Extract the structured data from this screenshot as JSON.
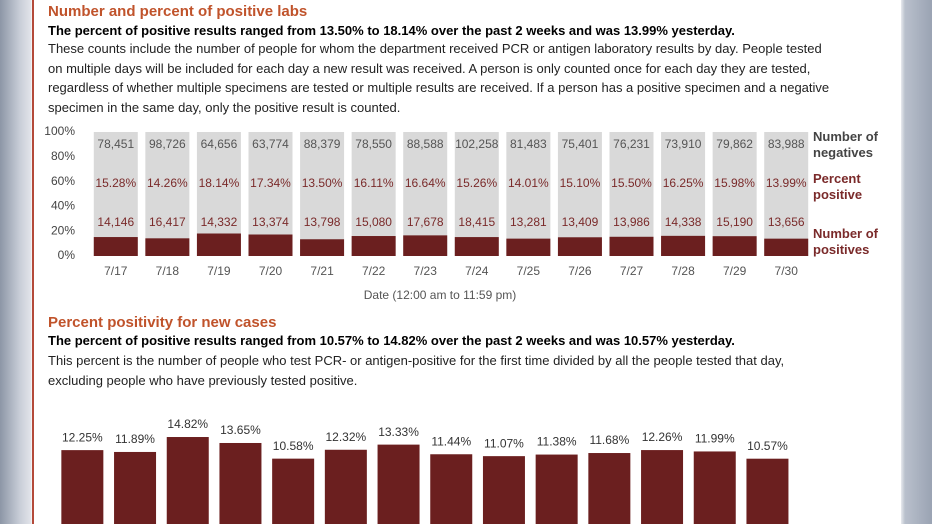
{
  "chart_data": [
    {
      "type": "bar",
      "title": "Number and percent of positive labs",
      "subtitle": "The percent of positive results ranged from 13.50% to 18.14% over the past 2 weeks and was 13.99% yesterday.",
      "description": "These counts include the number of people for whom the department received PCR or antigen laboratory results by day. People tested on multiple days will be included for each day a new result was received. A person is only counted once for each day they are tested, regardless of whether multiple specimens are tested or multiple results are received. If a person has a positive specimen and a negative specimen in the same day, only the positive result is counted.",
      "xlabel": "Date (12:00 am to 11:59 pm)",
      "categories": [
        "7/17",
        "7/18",
        "7/19",
        "7/20",
        "7/21",
        "7/22",
        "7/23",
        "7/24",
        "7/25",
        "7/26",
        "7/27",
        "7/28",
        "7/29",
        "7/30"
      ],
      "series": [
        {
          "name": "Number of negatives",
          "color": "#d9d9d9",
          "values": [
            78451,
            98726,
            64656,
            63774,
            88379,
            78550,
            88588,
            102258,
            81483,
            75401,
            76231,
            73910,
            79862,
            83988
          ],
          "value_labels": [
            "78,451",
            "98,726",
            "64,656",
            "63,774",
            "88,379",
            "78,550",
            "88,588",
            "102,258",
            "81,483",
            "75,401",
            "76,231",
            "73,910",
            "79,862",
            "83,988"
          ]
        },
        {
          "name": "Percent positive",
          "values": [
            15.28,
            14.26,
            18.14,
            17.34,
            13.5,
            16.11,
            16.64,
            15.26,
            14.01,
            15.1,
            15.5,
            16.25,
            15.98,
            13.99
          ],
          "value_labels": [
            "15.28%",
            "14.26%",
            "18.14%",
            "17.34%",
            "13.50%",
            "16.11%",
            "16.64%",
            "15.26%",
            "14.01%",
            "15.10%",
            "15.50%",
            "16.25%",
            "15.98%",
            "13.99%"
          ]
        },
        {
          "name": "Number of positives",
          "color": "#6b1f1f",
          "values": [
            14146,
            16417,
            14332,
            13374,
            13798,
            15080,
            17678,
            18415,
            13281,
            13409,
            13986,
            14338,
            15190,
            13656
          ],
          "value_labels": [
            "14,146",
            "16,417",
            "14,332",
            "13,374",
            "13,798",
            "15,080",
            "17,678",
            "18,415",
            "13,281",
            "13,409",
            "13,986",
            "14,338",
            "15,190",
            "13,656"
          ]
        }
      ],
      "ylim": [
        0,
        100
      ],
      "yticks": [
        {
          "value": 0,
          "label": "0%"
        },
        {
          "value": 20,
          "label": "20%"
        },
        {
          "value": 40,
          "label": "40%"
        },
        {
          "value": 60,
          "label": "60%"
        },
        {
          "value": 80,
          "label": "80%"
        },
        {
          "value": 100,
          "label": "100%"
        }
      ]
    },
    {
      "type": "bar",
      "title": "Percent positivity for new cases",
      "subtitle": "The percent of positive results ranged from 10.57% to 14.82% over the past 2 weeks and was 10.57% yesterday.",
      "description": "This percent is the number of people who test PCR- or antigen-positive for the first time divided by all the people tested that day, excluding people who have previously tested positive.",
      "color": "#6b1f1f",
      "values": [
        12.25,
        11.89,
        14.82,
        13.65,
        10.58,
        12.32,
        13.33,
        11.44,
        11.07,
        11.38,
        11.68,
        12.26,
        11.99,
        10.57
      ],
      "value_labels": [
        "12.25%",
        "11.89%",
        "14.82%",
        "13.65%",
        "10.58%",
        "12.32%",
        "13.33%",
        "11.44%",
        "11.07%",
        "11.38%",
        "11.68%",
        "12.26%",
        "11.99%",
        "10.57%"
      ]
    }
  ]
}
